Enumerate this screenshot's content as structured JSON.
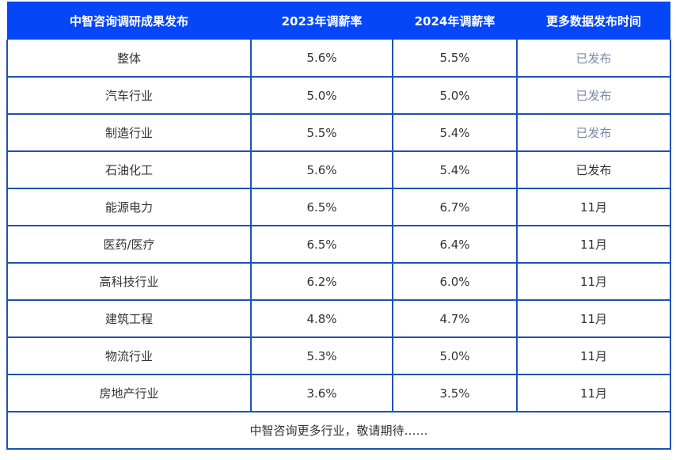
{
  "chart_data": {
    "type": "table",
    "title": "中智咨询调研成果发布",
    "columns": [
      "中智咨询调研成果发布",
      "2023年调薪率",
      "2024年调薪率",
      "更多数据发布时间"
    ],
    "rows": [
      {
        "industry": "整体",
        "rate_2023": "5.6%",
        "rate_2024": "5.5%",
        "release": "已发布",
        "muted": true
      },
      {
        "industry": "汽车行业",
        "rate_2023": "5.0%",
        "rate_2024": "5.0%",
        "release": "已发布",
        "muted": true
      },
      {
        "industry": "制造行业",
        "rate_2023": "5.5%",
        "rate_2024": "5.4%",
        "release": "已发布",
        "muted": true
      },
      {
        "industry": "石油化工",
        "rate_2023": "5.6%",
        "rate_2024": "5.4%",
        "release": "已发布",
        "muted": false
      },
      {
        "industry": "能源电力",
        "rate_2023": "6.5%",
        "rate_2024": "6.7%",
        "release": "11月",
        "muted": false
      },
      {
        "industry": "医药/医疗",
        "rate_2023": "6.5%",
        "rate_2024": "6.4%",
        "release": "11月",
        "muted": false
      },
      {
        "industry": "高科技行业",
        "rate_2023": "6.2%",
        "rate_2024": "6.0%",
        "release": "11月",
        "muted": false
      },
      {
        "industry": "建筑工程",
        "rate_2023": "4.8%",
        "rate_2024": "4.7%",
        "release": "11月",
        "muted": false
      },
      {
        "industry": "物流行业",
        "rate_2023": "5.3%",
        "rate_2024": "5.0%",
        "release": "11月",
        "muted": false
      },
      {
        "industry": "房地产行业",
        "rate_2023": "3.6%",
        "rate_2024": "3.5%",
        "release": "11月",
        "muted": false
      }
    ],
    "footer": "中智咨询更多行业，敬请期待……"
  },
  "colors": {
    "header_bg": "#0546f8",
    "header_text": "#ffffff",
    "border": "#1e52b4",
    "body_text": "#333333",
    "muted_status": "#7d88aa",
    "background": "#ffffff"
  }
}
